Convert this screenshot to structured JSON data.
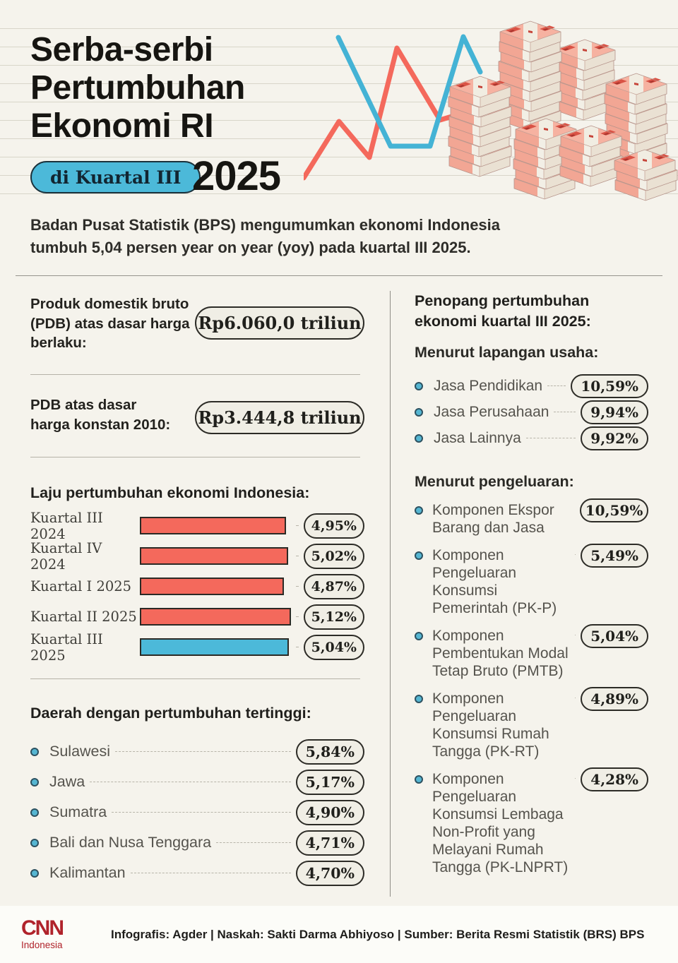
{
  "colors": {
    "background": "#f5f3ec",
    "accent_red": "#f4695c",
    "accent_blue": "#4cb9d9",
    "pill_fill": "#f0eee5",
    "cnn_red": "#b0232b"
  },
  "header": {
    "title_line1": "Serba-serbi",
    "title_line2": "Pertumbuhan",
    "title_line3": "Ekonomi RI",
    "badge_label": "di Kuartal III",
    "year": "2025"
  },
  "intro": "Badan Pusat Statistik (BPS) mengumumkan ekonomi Indonesia tumbuh 5,04 persen year on year (yoy) pada kuartal III 2025.",
  "gdp": {
    "current_price": {
      "label": "Produk domestik bruto (PDB) atas dasar harga berlaku:",
      "value": "Rp6.060,0 triliun"
    },
    "constant_price": {
      "label": "PDB atas dasar harga konstan 2010:",
      "value": "Rp3.444,8 triliun"
    }
  },
  "sections": {
    "growth_title": "Laju pertumbuhan ekonomi Indonesia:",
    "regions_title": "Daerah dengan pertumbuhan tertinggi:",
    "supporters_title": "Penopang pertumbuhan ekonomi kuartal III 2025:",
    "by_industry_title": "Menurut lapangan usaha:",
    "by_expenditure_title": "Menurut pengeluaran:"
  },
  "chart_data": [
    {
      "type": "bar",
      "title": "Laju pertumbuhan ekonomi Indonesia",
      "orientation": "horizontal",
      "categories": [
        "Kuartal III 2024",
        "Kuartal IV 2024",
        "Kuartal I 2025",
        "Kuartal II 2025",
        "Kuartal III 2025"
      ],
      "values": [
        4.95,
        5.02,
        4.87,
        5.12,
        5.04
      ],
      "data_labels": [
        "4,95%",
        "5,02%",
        "4,87%",
        "5,12%",
        "5,04%"
      ],
      "bar_colors": [
        "#f4695c",
        "#f4695c",
        "#f4695c",
        "#f4695c",
        "#4cb9d9"
      ],
      "xlim": [
        0,
        5.5
      ],
      "unit": "percent yoy",
      "grid": false,
      "legend": false
    },
    {
      "type": "table",
      "title": "Daerah dengan pertumbuhan tertinggi",
      "categories": [
        "Sulawesi",
        "Jawa",
        "Sumatra",
        "Bali dan Nusa Tenggara",
        "Kalimantan"
      ],
      "values": [
        5.84,
        5.17,
        4.9,
        4.71,
        4.7
      ],
      "data_labels": [
        "5,84%",
        "5,17%",
        "4,90%",
        "4,71%",
        "4,70%"
      ]
    },
    {
      "type": "table",
      "title": "Penopang pertumbuhan ekonomi kuartal III 2025 — Menurut lapangan usaha",
      "categories": [
        "Jasa Pendidikan",
        "Jasa Perusahaan",
        "Jasa Lainnya"
      ],
      "values": [
        10.59,
        9.94,
        9.92
      ],
      "data_labels": [
        "10,59%",
        "9,94%",
        "9,92%"
      ]
    },
    {
      "type": "table",
      "title": "Penopang pertumbuhan ekonomi kuartal III 2025 — Menurut pengeluaran",
      "categories": [
        "Komponen Ekspor Barang dan Jasa",
        "Komponen Pengeluaran Konsumsi Pemerintah (PK-P)",
        "Komponen Pembentukan Modal Tetap Bruto (PMTB)",
        "Komponen Pengeluaran Konsumsi Rumah Tangga (PK-RT)",
        "Komponen Pengeluaran Konsumsi Lembaga Non-Profit yang Melayani Rumah Tangga (PK-LNPRT)"
      ],
      "values": [
        10.59,
        5.49,
        5.04,
        4.89,
        4.28
      ],
      "data_labels": [
        "10,59%",
        "5,49%",
        "5,04%",
        "4,89%",
        "4,28%"
      ]
    }
  ],
  "footer": {
    "logo_line1": "CNN",
    "logo_line2": "Indonesia",
    "credits": "Infografis: Agder | Naskah: Sakti Darma Abhiyoso | Sumber: Berita Resmi Statistik (BRS) BPS"
  }
}
